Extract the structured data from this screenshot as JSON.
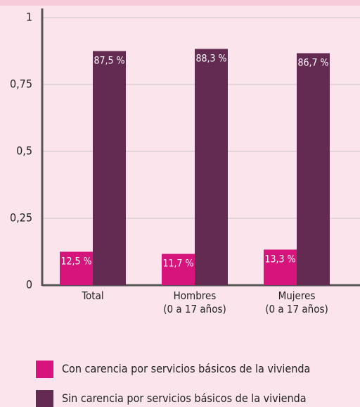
{
  "chart_data": {
    "type": "bar",
    "categories": [
      "Total",
      "Hombres\n(0 a 17 años)",
      "Mujeres\n(0 a 17 años)"
    ],
    "series": [
      {
        "name": "Con carencia por servicios básicos de la vivienda",
        "color": "#d7137c",
        "values": [
          0.125,
          0.117,
          0.133
        ],
        "value_labels": [
          "12,5 %",
          "11,7 %",
          "13,3 %"
        ]
      },
      {
        "name": "Sin carencia por servicios básicos de la vivienda",
        "color": "#632b51",
        "values": [
          0.875,
          0.883,
          0.867
        ],
        "value_labels": [
          "87,5 %",
          "88,3 %",
          "86,7 %"
        ]
      }
    ],
    "ylim": [
      0,
      1
    ],
    "yticks": [
      0,
      {
        "value": 0.25,
        "label": "0,25"
      },
      {
        "value": 0.5,
        "label": "0,5"
      },
      {
        "value": 0.75,
        "label": "0,75"
      },
      1
    ],
    "grid": true
  }
}
